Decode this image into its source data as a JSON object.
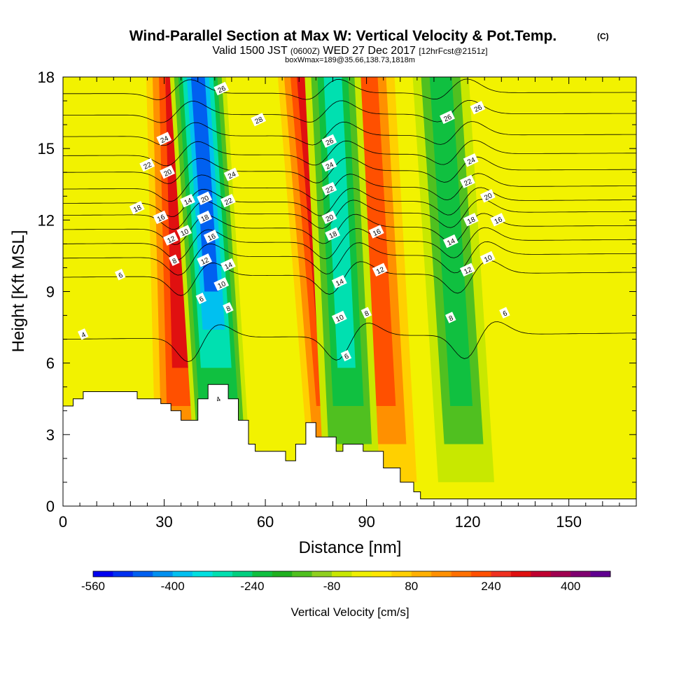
{
  "header": {
    "title": "Wind-Parallel Section at Max W: Vertical Velocity & Pot.Temp.",
    "copyright": "(C)",
    "valid_prefix": "Valid 1500 JST",
    "valid_zulu": "(0600Z)",
    "valid_date": "WED 27 Dec 2017",
    "forecast": "[12hrFcst@2151z]",
    "box_info": "boxWmax=189@35.66,138.73,1818m"
  },
  "chart_data": {
    "type": "heatmap",
    "title": "Wind-Parallel Section at Max W: Vertical Velocity & Pot.Temp.",
    "xlabel": "Distance [nm]",
    "ylabel": "Height [Kft MSL]",
    "xlim": [
      0,
      170
    ],
    "ylim": [
      0,
      18
    ],
    "x_ticks": [
      0,
      30,
      60,
      90,
      120,
      150
    ],
    "y_ticks": [
      0,
      3,
      6,
      9,
      12,
      15,
      18
    ],
    "colorbar": {
      "label": "Vertical Velocity [cm/s]",
      "range": [
        -560,
        500
      ],
      "step": 40,
      "tick_values": [
        -560,
        -400,
        -240,
        -80,
        80,
        240,
        400
      ],
      "colors": [
        "#0000f0",
        "#0030f0",
        "#0060f0",
        "#0090f0",
        "#00c0f0",
        "#00e0e0",
        "#00e0b0",
        "#00d080",
        "#10c040",
        "#20b020",
        "#50c020",
        "#90d020",
        "#c8e800",
        "#f0f000",
        "#ffe800",
        "#ffd000",
        "#ffb000",
        "#ff9000",
        "#ff7000",
        "#ff5000",
        "#f03020",
        "#e01010",
        "#c00030",
        "#a00050",
        "#800070",
        "#600090"
      ]
    },
    "updraft_bands": [
      {
        "x_base": 36,
        "x_top": 33,
        "w_max": 360
      },
      {
        "x_base": 82,
        "x_top": 72,
        "w_max": 360
      },
      {
        "x_base": 97,
        "x_top": 90,
        "w_max": 240
      }
    ],
    "downdraft_bands": [
      {
        "x_base": 48,
        "x_top": 40,
        "w_min": -480
      },
      {
        "x_base": 86,
        "x_top": 80,
        "w_min": -320
      },
      {
        "x_base": 120,
        "x_top": 112,
        "w_min": -240
      }
    ],
    "terrain": {
      "x": [
        0,
        3,
        3,
        6,
        6,
        22,
        22,
        29,
        29,
        32,
        32,
        35,
        35,
        40,
        40,
        43,
        43,
        49,
        49,
        52,
        52,
        55,
        55,
        57,
        57,
        66,
        66,
        69,
        69,
        72,
        72,
        75,
        75,
        81,
        81,
        83,
        83,
        85,
        85,
        89,
        89,
        95,
        95,
        100,
        100,
        104,
        104,
        106,
        106,
        108,
        108,
        170
      ],
      "y": [
        4.2,
        4.2,
        4.5,
        4.5,
        4.8,
        4.8,
        4.5,
        4.5,
        4.3,
        4.3,
        4.0,
        4.0,
        3.6,
        3.6,
        4.5,
        4.5,
        5.1,
        5.1,
        4.5,
        4.5,
        3.6,
        3.6,
        2.6,
        2.6,
        2.3,
        2.3,
        1.9,
        1.9,
        2.6,
        2.6,
        3.5,
        3.5,
        2.9,
        2.9,
        2.3,
        2.3,
        2.6,
        2.6,
        2.6,
        2.6,
        2.3,
        2.3,
        1.6,
        1.6,
        1.0,
        1.0,
        0.6,
        0.6,
        0.3,
        0.3,
        0.3,
        0.3
      ]
    },
    "theta_contours": [
      {
        "level": 4,
        "y0": 7.0
      },
      {
        "level": 6,
        "y0": 9.6
      },
      {
        "level": 8,
        "y0": 10.4
      },
      {
        "level": 10,
        "y0": 11.0
      },
      {
        "level": 12,
        "y0": 11.6
      },
      {
        "level": 14,
        "y0": 12.2
      },
      {
        "level": 16,
        "y0": 12.7
      },
      {
        "level": 18,
        "y0": 13.3
      },
      {
        "level": 20,
        "y0": 14.0
      },
      {
        "level": 22,
        "y0": 14.7
      },
      {
        "level": 24,
        "y0": 15.5
      },
      {
        "level": 26,
        "y0": 16.4
      },
      {
        "level": 28,
        "y0": 17.3
      }
    ],
    "contour_labels": [
      {
        "text": "4",
        "x": 6,
        "y": 7.2
      },
      {
        "text": "4",
        "x": 46,
        "y": 4.5
      },
      {
        "text": "6",
        "x": 17,
        "y": 9.7
      },
      {
        "text": "6",
        "x": 41,
        "y": 8.7
      },
      {
        "text": "6",
        "x": 84,
        "y": 6.3
      },
      {
        "text": "6",
        "x": 131,
        "y": 8.1
      },
      {
        "text": "8",
        "x": 33,
        "y": 10.3
      },
      {
        "text": "8",
        "x": 49,
        "y": 8.3
      },
      {
        "text": "8",
        "x": 90,
        "y": 8.1
      },
      {
        "text": "8",
        "x": 115,
        "y": 7.9
      },
      {
        "text": "10",
        "x": 36,
        "y": 11.5
      },
      {
        "text": "10",
        "x": 47,
        "y": 9.3
      },
      {
        "text": "10",
        "x": 82,
        "y": 7.9
      },
      {
        "text": "10",
        "x": 126,
        "y": 10.4
      },
      {
        "text": "12",
        "x": 32,
        "y": 11.2
      },
      {
        "text": "12",
        "x": 42,
        "y": 10.3
      },
      {
        "text": "12",
        "x": 94,
        "y": 9.9
      },
      {
        "text": "12",
        "x": 120,
        "y": 9.9
      },
      {
        "text": "14",
        "x": 37,
        "y": 12.8
      },
      {
        "text": "14",
        "x": 49,
        "y": 10.1
      },
      {
        "text": "14",
        "x": 82,
        "y": 9.4
      },
      {
        "text": "14",
        "x": 115,
        "y": 11.1
      },
      {
        "text": "16",
        "x": 29,
        "y": 12.1
      },
      {
        "text": "16",
        "x": 44,
        "y": 11.3
      },
      {
        "text": "16",
        "x": 93,
        "y": 11.5
      },
      {
        "text": "16",
        "x": 129,
        "y": 12.0
      },
      {
        "text": "18",
        "x": 22,
        "y": 12.5
      },
      {
        "text": "18",
        "x": 42,
        "y": 12.1
      },
      {
        "text": "18",
        "x": 80,
        "y": 11.4
      },
      {
        "text": "18",
        "x": 121,
        "y": 12.0
      },
      {
        "text": "20",
        "x": 31,
        "y": 14.0
      },
      {
        "text": "20",
        "x": 42,
        "y": 12.9
      },
      {
        "text": "20",
        "x": 79,
        "y": 12.1
      },
      {
        "text": "20",
        "x": 126,
        "y": 13.0
      },
      {
        "text": "22",
        "x": 25,
        "y": 14.3
      },
      {
        "text": "22",
        "x": 49,
        "y": 12.8
      },
      {
        "text": "22",
        "x": 79,
        "y": 13.3
      },
      {
        "text": "22",
        "x": 120,
        "y": 13.6
      },
      {
        "text": "24",
        "x": 30,
        "y": 15.4
      },
      {
        "text": "24",
        "x": 50,
        "y": 13.9
      },
      {
        "text": "24",
        "x": 79,
        "y": 14.3
      },
      {
        "text": "24",
        "x": 121,
        "y": 14.5
      },
      {
        "text": "26",
        "x": 47,
        "y": 17.5
      },
      {
        "text": "26",
        "x": 79,
        "y": 15.3
      },
      {
        "text": "26",
        "x": 114,
        "y": 16.3
      },
      {
        "text": "26",
        "x": 123,
        "y": 16.7
      },
      {
        "text": "28",
        "x": 58,
        "y": 16.2
      }
    ]
  }
}
